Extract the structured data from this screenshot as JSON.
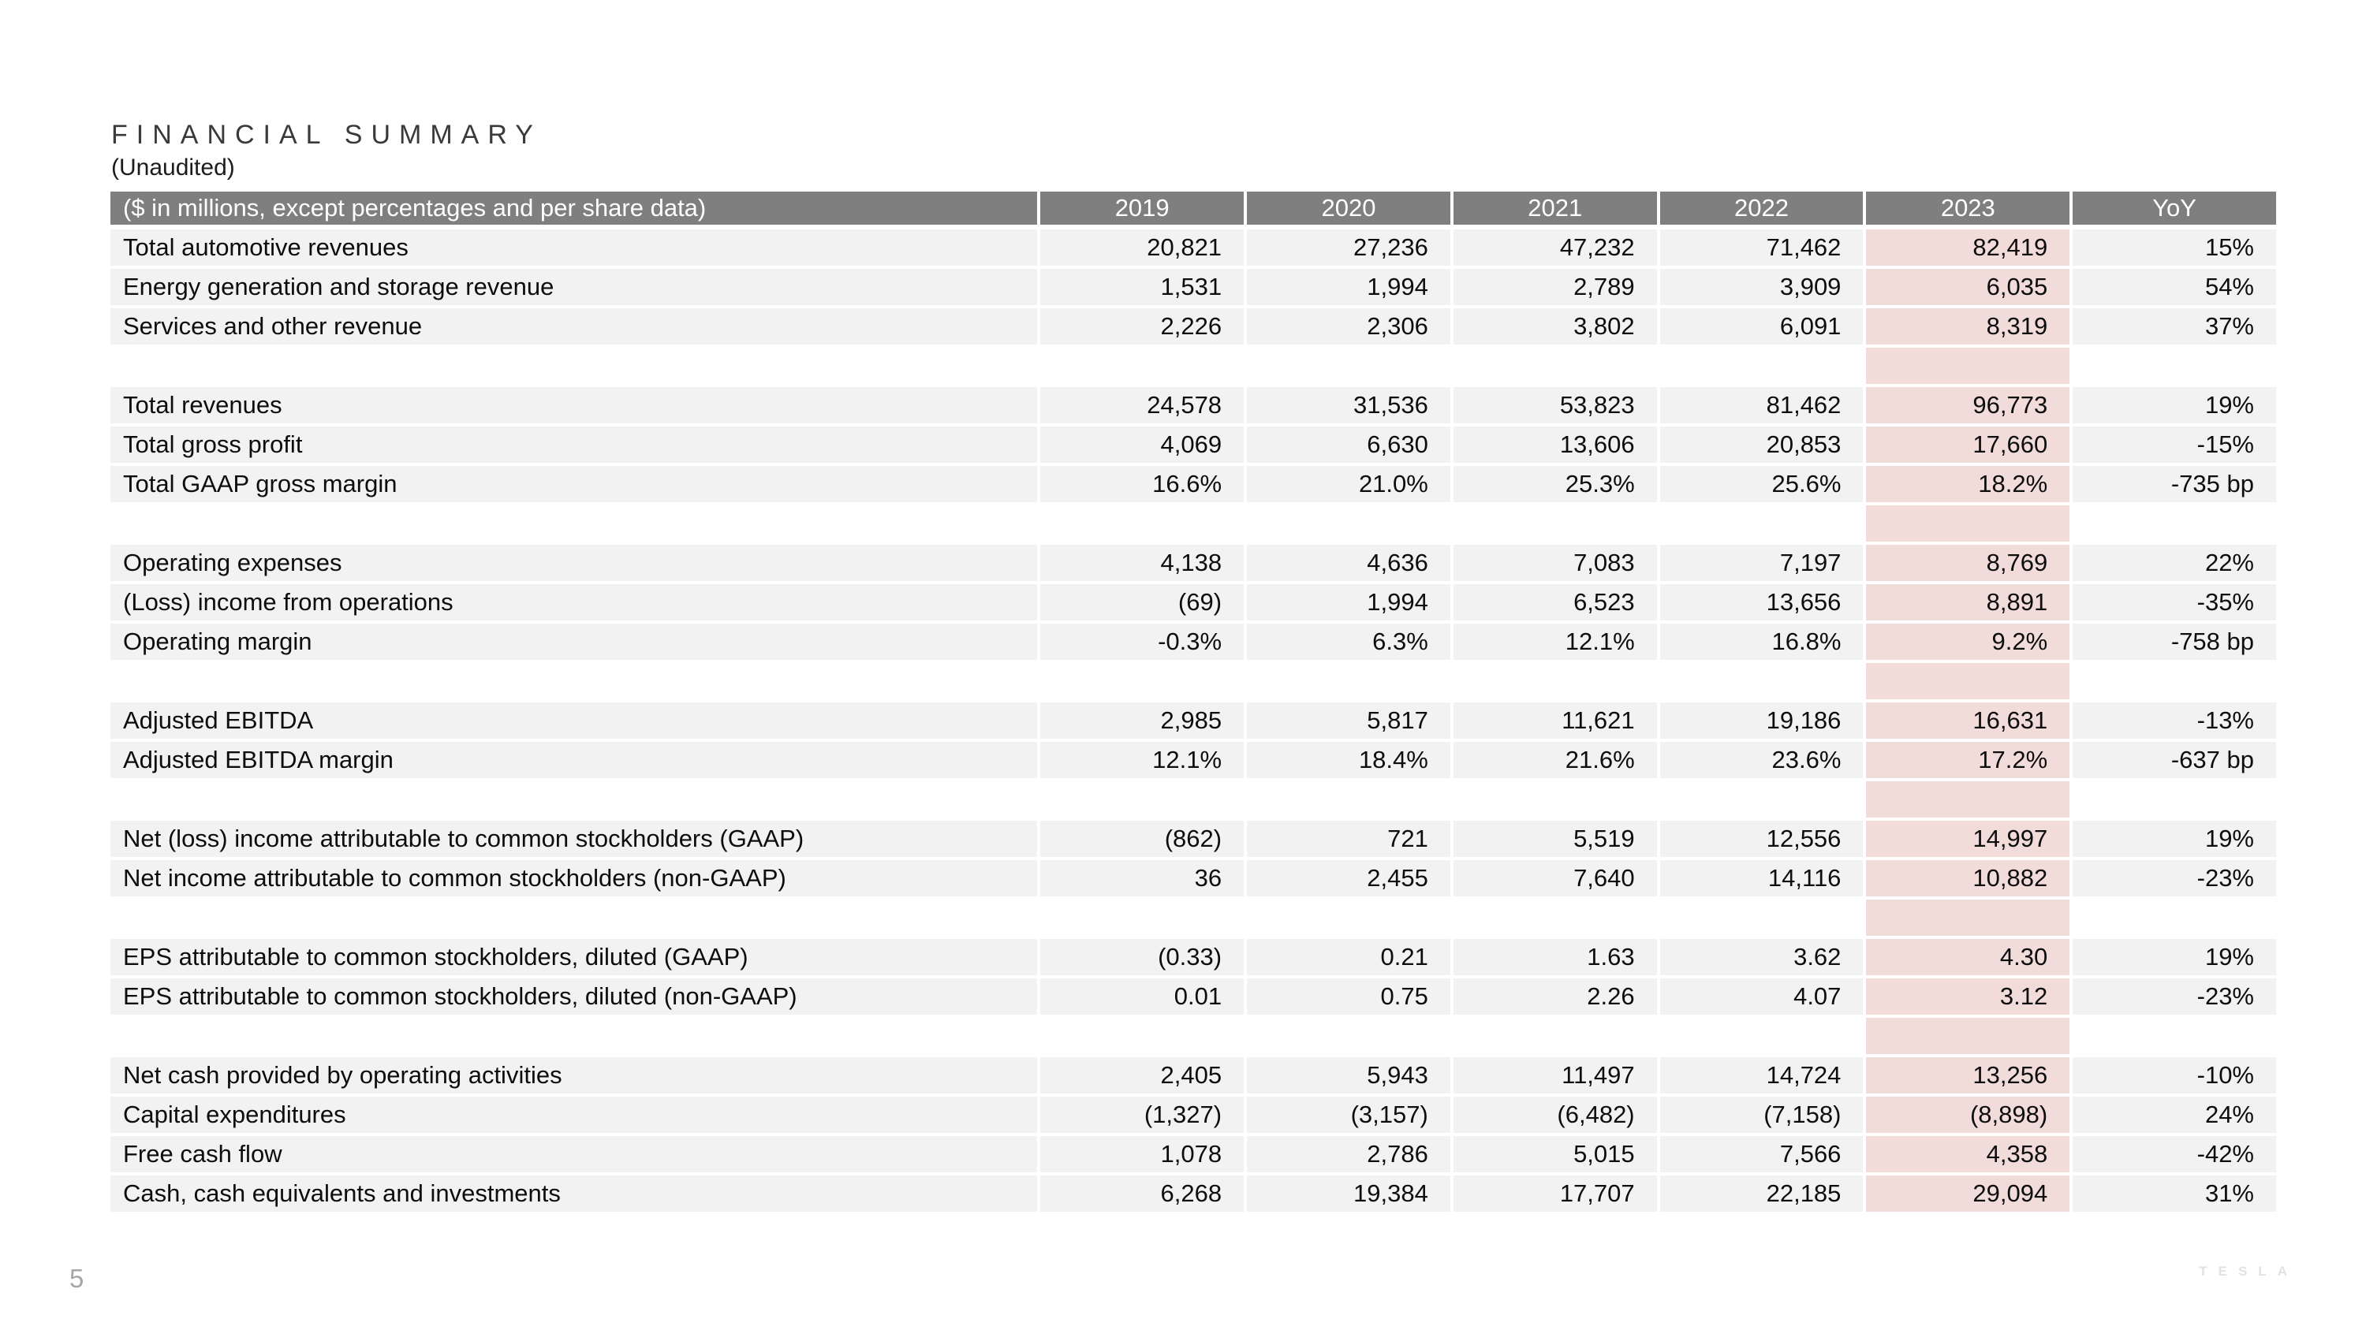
{
  "slide": {
    "title": "FINANCIAL SUMMARY",
    "subtitle": "(Unaudited)",
    "page_number": "5",
    "logo_text": "TESLA"
  },
  "colors": {
    "header_bg": "#7f7f7f",
    "header_text": "#ffffff",
    "row_bg": "#f2f2f2",
    "highlight_bg": "#f1dcda",
    "page_number": "#a6a6a6",
    "logo": "#e2e2e6"
  },
  "table": {
    "columns": [
      "($ in millions, except percentages and per share data)",
      "2019",
      "2020",
      "2021",
      "2022",
      "2023",
      "YoY"
    ],
    "highlight_column": "2023",
    "groups": [
      {
        "rows": [
          {
            "label": "Total automotive revenues",
            "values": [
              "20,821",
              "27,236",
              "47,232",
              "71,462",
              "82,419",
              "15%"
            ]
          },
          {
            "label": "Energy generation and storage revenue",
            "values": [
              "1,531",
              "1,994",
              "2,789",
              "3,909",
              "6,035",
              "54%"
            ]
          },
          {
            "label": "Services and other revenue",
            "values": [
              "2,226",
              "2,306",
              "3,802",
              "6,091",
              "8,319",
              "37%"
            ]
          }
        ]
      },
      {
        "rows": [
          {
            "label": "Total revenues",
            "values": [
              "24,578",
              "31,536",
              "53,823",
              "81,462",
              "96,773",
              "19%"
            ]
          },
          {
            "label": "Total gross profit",
            "values": [
              "4,069",
              "6,630",
              "13,606",
              "20,853",
              "17,660",
              "-15%"
            ]
          },
          {
            "label": "Total GAAP gross margin",
            "values": [
              "16.6%",
              "21.0%",
              "25.3%",
              "25.6%",
              "18.2%",
              "-735 bp"
            ]
          }
        ]
      },
      {
        "rows": [
          {
            "label": "Operating expenses",
            "values": [
              "4,138",
              "4,636",
              "7,083",
              "7,197",
              "8,769",
              "22%"
            ]
          },
          {
            "label": "(Loss) income from operations",
            "values": [
              "(69)",
              "1,994",
              "6,523",
              "13,656",
              "8,891",
              "-35%"
            ]
          },
          {
            "label": "Operating margin",
            "values": [
              "-0.3%",
              "6.3%",
              "12.1%",
              "16.8%",
              "9.2%",
              "-758 bp"
            ]
          }
        ]
      },
      {
        "rows": [
          {
            "label": "Adjusted EBITDA",
            "values": [
              "2,985",
              "5,817",
              "11,621",
              "19,186",
              "16,631",
              "-13%"
            ]
          },
          {
            "label": "Adjusted EBITDA margin",
            "values": [
              "12.1%",
              "18.4%",
              "21.6%",
              "23.6%",
              "17.2%",
              "-637 bp"
            ]
          }
        ]
      },
      {
        "rows": [
          {
            "label": "Net (loss) income attributable to common stockholders (GAAP)",
            "values": [
              "(862)",
              "721",
              "5,519",
              "12,556",
              "14,997",
              "19%"
            ]
          },
          {
            "label": "Net income attributable to common stockholders (non-GAAP)",
            "values": [
              "36",
              "2,455",
              "7,640",
              "14,116",
              "10,882",
              "-23%"
            ]
          }
        ]
      },
      {
        "rows": [
          {
            "label": "EPS attributable to common stockholders, diluted (GAAP)",
            "values": [
              "(0.33)",
              "0.21",
              "1.63",
              "3.62",
              "4.30",
              "19%"
            ]
          },
          {
            "label": "EPS attributable to common stockholders, diluted (non-GAAP)",
            "values": [
              "0.01",
              "0.75",
              "2.26",
              "4.07",
              "3.12",
              "-23%"
            ]
          }
        ]
      },
      {
        "rows": [
          {
            "label": "Net cash provided by operating activities",
            "values": [
              "2,405",
              "5,943",
              "11,497",
              "14,724",
              "13,256",
              "-10%"
            ]
          },
          {
            "label": "Capital expenditures",
            "values": [
              "(1,327)",
              "(3,157)",
              "(6,482)",
              "(7,158)",
              "(8,898)",
              "24%"
            ]
          },
          {
            "label": "Free cash flow",
            "values": [
              "1,078",
              "2,786",
              "5,015",
              "7,566",
              "4,358",
              "-42%"
            ]
          },
          {
            "label": "Cash, cash equivalents and investments",
            "values": [
              "6,268",
              "19,384",
              "17,707",
              "22,185",
              "29,094",
              "31%"
            ]
          }
        ]
      }
    ]
  }
}
